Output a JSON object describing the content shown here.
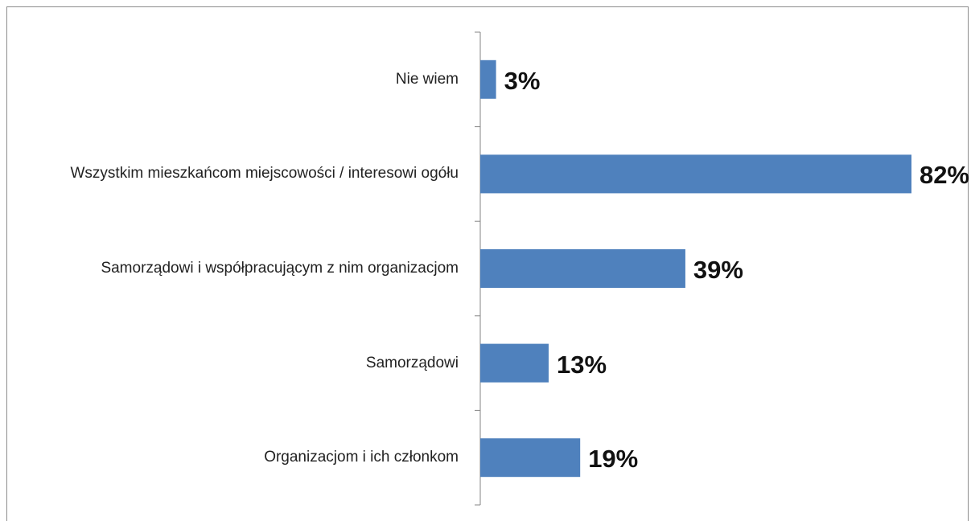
{
  "chart_data": {
    "type": "barh",
    "categories": [
      "Nie wiem",
      "Wszystkim mieszkańcom miejscowości / interesowi ogółu",
      "Samorządowi i współpracującym z nim organizacjom",
      "Samorządowi",
      "Organizacjom i ich członkom"
    ],
    "values": [
      3,
      82,
      39,
      13,
      19
    ],
    "value_labels": [
      "3%",
      "82%",
      "39%",
      "13%",
      "19%"
    ],
    "color": "#4f81bd"
  }
}
